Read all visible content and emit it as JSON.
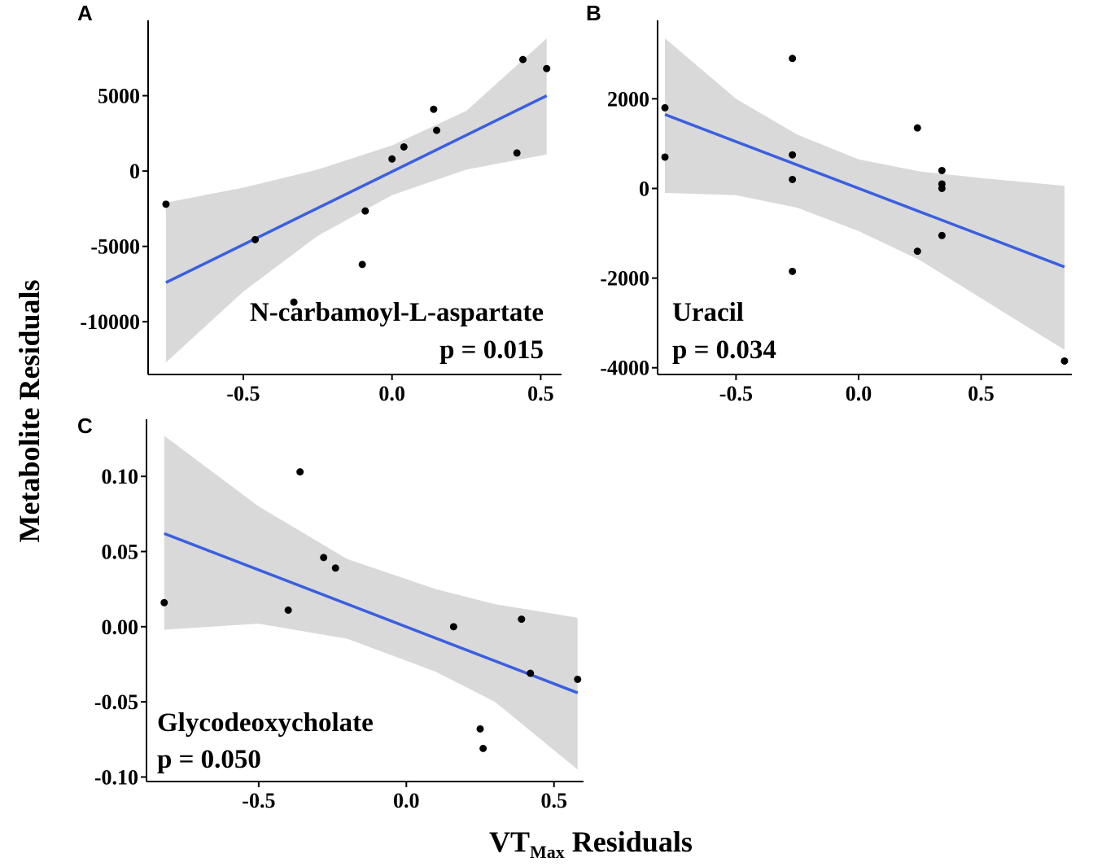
{
  "figure": {
    "y_axis_title": "Metabolite Residuals",
    "x_axis_title_main": "VT",
    "x_axis_title_subscript": "Max",
    "x_axis_title_rest": " Residuals",
    "colors": {
      "fit_line": "#3a5fe0",
      "confidence_band": "#d9d9d9",
      "points": "#000000"
    }
  },
  "chart_data": [
    {
      "panel": "A",
      "type": "scatter",
      "metabolite": "N-carbamoyl-L-aspartate",
      "p_text": "p = 0.015",
      "xlim": [
        -0.82,
        0.57
      ],
      "ylim": [
        -13500,
        10000
      ],
      "xticks": [
        -0.5,
        0.0,
        0.5
      ],
      "xtick_labels": [
        "-0.5",
        "0.0",
        "0.5"
      ],
      "yticks": [
        5000,
        0,
        -5000,
        -10000
      ],
      "ytick_labels": [
        "5000",
        "0",
        "-5000",
        "-10000"
      ],
      "points": [
        {
          "x": -0.76,
          "y": -2200
        },
        {
          "x": -0.46,
          "y": -4550
        },
        {
          "x": -0.33,
          "y": -8700
        },
        {
          "x": -0.1,
          "y": -6200
        },
        {
          "x": -0.09,
          "y": -2650
        },
        {
          "x": 0.0,
          "y": 800
        },
        {
          "x": 0.04,
          "y": 1600
        },
        {
          "x": 0.14,
          "y": 4100
        },
        {
          "x": 0.15,
          "y": 2700
        },
        {
          "x": 0.42,
          "y": 1200
        },
        {
          "x": 0.44,
          "y": 7400
        },
        {
          "x": 0.52,
          "y": 6800
        }
      ],
      "fit": {
        "x": [
          -0.76,
          0.52
        ],
        "y": [
          -7400,
          5000
        ]
      },
      "band": {
        "x": [
          -0.76,
          -0.5,
          -0.25,
          0.0,
          0.25,
          0.52
        ],
        "upper": [
          -2100,
          -1100,
          100,
          1700,
          4000,
          8800
        ],
        "lower": [
          -12700,
          -8000,
          -4300,
          -1600,
          100,
          1100
        ]
      }
    },
    {
      "panel": "B",
      "type": "scatter",
      "metabolite": "Uracil",
      "p_text": "p = 0.034",
      "xlim": [
        -0.82,
        0.87
      ],
      "ylim": [
        -4150,
        3750
      ],
      "xticks": [
        -0.5,
        0.0,
        0.5
      ],
      "xtick_labels": [
        "-0.5",
        "0.0",
        "0.5"
      ],
      "yticks": [
        2000,
        0,
        -2000,
        -4000
      ],
      "ytick_labels": [
        "2000",
        "0",
        "-2000",
        "-4000"
      ],
      "points": [
        {
          "x": -0.79,
          "y": 1800
        },
        {
          "x": -0.79,
          "y": 700
        },
        {
          "x": -0.27,
          "y": 2900
        },
        {
          "x": -0.27,
          "y": 750
        },
        {
          "x": -0.27,
          "y": 200
        },
        {
          "x": -0.27,
          "y": -1850
        },
        {
          "x": 0.24,
          "y": 1350
        },
        {
          "x": 0.24,
          "y": -1400
        },
        {
          "x": 0.34,
          "y": 400
        },
        {
          "x": 0.34,
          "y": 100
        },
        {
          "x": 0.34,
          "y": 0
        },
        {
          "x": 0.34,
          "y": -1050
        },
        {
          "x": 0.84,
          "y": -3850
        }
      ],
      "fit": {
        "x": [
          -0.79,
          0.84
        ],
        "y": [
          1650,
          -1750
        ]
      },
      "band": {
        "x": [
          -0.79,
          -0.5,
          -0.25,
          0.0,
          0.25,
          0.5,
          0.84
        ],
        "upper": [
          3350,
          2000,
          1200,
          650,
          380,
          230,
          60
        ],
        "lower": [
          -100,
          -150,
          -430,
          -950,
          -1600,
          -2450,
          -3600
        ]
      }
    },
    {
      "panel": "C",
      "type": "scatter",
      "metabolite": "Glycodeoxycholate",
      "p_text": "p = 0.050",
      "xlim": [
        -0.88,
        0.6
      ],
      "ylim": [
        -0.103,
        0.138
      ],
      "xticks": [
        -0.5,
        0.0,
        0.5
      ],
      "xtick_labels": [
        "-0.5",
        "0.0",
        "0.5"
      ],
      "yticks": [
        0.1,
        0.05,
        0.0,
        -0.05,
        -0.1
      ],
      "ytick_labels": [
        "0.10",
        "0.05",
        "0.00",
        "-0.05",
        "-0.10"
      ],
      "points": [
        {
          "x": -0.82,
          "y": 0.016
        },
        {
          "x": -0.4,
          "y": 0.011
        },
        {
          "x": -0.36,
          "y": 0.103
        },
        {
          "x": -0.28,
          "y": 0.046
        },
        {
          "x": -0.24,
          "y": 0.039
        },
        {
          "x": 0.16,
          "y": 0.0
        },
        {
          "x": 0.25,
          "y": -0.068
        },
        {
          "x": 0.26,
          "y": -0.081
        },
        {
          "x": 0.39,
          "y": 0.005
        },
        {
          "x": 0.42,
          "y": -0.031
        },
        {
          "x": 0.58,
          "y": -0.035
        }
      ],
      "fit": {
        "x": [
          -0.82,
          0.58
        ],
        "y": [
          0.062,
          -0.044
        ]
      },
      "band": {
        "x": [
          -0.82,
          -0.5,
          -0.2,
          0.1,
          0.3,
          0.58
        ],
        "upper": [
          0.127,
          0.08,
          0.045,
          0.025,
          0.015,
          0.006
        ],
        "lower": [
          -0.002,
          0.002,
          -0.008,
          -0.03,
          -0.05,
          -0.095
        ]
      }
    }
  ]
}
